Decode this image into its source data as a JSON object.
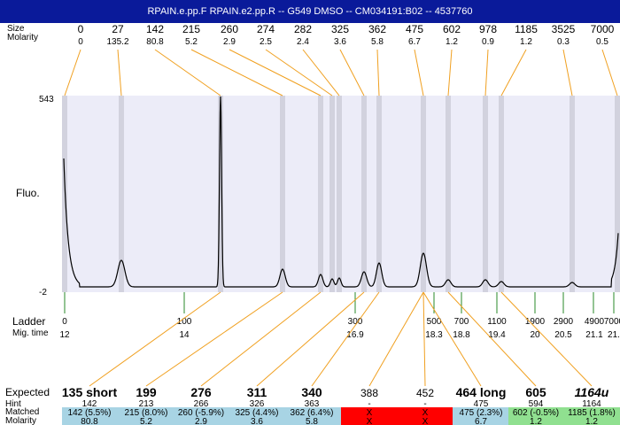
{
  "header": {
    "title": "RPAIN.e.pp.F  RPAIN.e2.pp.R -- G549 DMSO -- CM034191:B02 -- 4537760"
  },
  "labels": {
    "size_row": "Size",
    "molarity_row": "Molarity",
    "y_axis": "Fluo.",
    "ladder_row": "Ladder",
    "migtime_row": "Mig. time",
    "expected_row": "Expected",
    "hint_row": "Hint",
    "matched_row": "Matched",
    "molarity_bottom_row": "Molarity"
  },
  "colors": {
    "title_bg": "#0a1a9a",
    "plot_bg": "#ececf8",
    "band": "#d2d2de",
    "trace": "#000000",
    "connector": "#f0a020",
    "ladder_tick": "#2a8a2a",
    "matched_blue": "#a8d4e4",
    "matched_red": "#ff0000",
    "matched_green": "#90e090"
  },
  "chart_data": {
    "type": "line",
    "ylabel": "Fluo.",
    "y_ticks": [
      "543",
      "-2"
    ],
    "ylim": [
      -2,
      543
    ],
    "peaks": [
      {
        "size": "0",
        "molarity": "0"
      },
      {
        "size": "27",
        "molarity": "135.2"
      },
      {
        "size": "142",
        "molarity": "80.8"
      },
      {
        "size": "215",
        "molarity": "5.2"
      },
      {
        "size": "260",
        "molarity": "2.9"
      },
      {
        "size": "274",
        "molarity": "2.5"
      },
      {
        "size": "282",
        "molarity": "2.4"
      },
      {
        "size": "325",
        "molarity": "3.6"
      },
      {
        "size": "362",
        "molarity": "5.8"
      },
      {
        "size": "475",
        "molarity": "6.7"
      },
      {
        "size": "602",
        "molarity": "1.2"
      },
      {
        "size": "978",
        "molarity": "0.9"
      },
      {
        "size": "1185",
        "molarity": "1.2"
      },
      {
        "size": "3525",
        "molarity": "0.3"
      },
      {
        "size": "7000",
        "molarity": "0.5"
      }
    ],
    "ladder": [
      {
        "size": "0",
        "mig_time": "12"
      },
      {
        "size": "100",
        "mig_time": "14"
      },
      {
        "size": "300",
        "mig_time": "16.9"
      },
      {
        "size": "500",
        "mig_time": "18.3"
      },
      {
        "size": "700",
        "mig_time": "18.8"
      },
      {
        "size": "1100",
        "mig_time": "19.4"
      },
      {
        "size": "1900",
        "mig_time": "20"
      },
      {
        "size": "2900",
        "mig_time": "20.5"
      },
      {
        "size": "4900",
        "mig_time": "21.1"
      },
      {
        "size": "7000",
        "mig_time": "21."
      }
    ],
    "expected": [
      {
        "expected": "135 short",
        "hint": "142",
        "matched": "142 (5.5%)",
        "molarity": "80.8",
        "status": "blue"
      },
      {
        "expected": "199",
        "hint": "213",
        "matched": "215 (8.0%)",
        "molarity": "5.2",
        "status": "blue"
      },
      {
        "expected": "276",
        "hint": "266",
        "matched": "260 (-5.9%)",
        "molarity": "2.9",
        "status": "blue"
      },
      {
        "expected": "311",
        "hint": "326",
        "matched": "325 (4.4%)",
        "molarity": "3.6",
        "status": "blue"
      },
      {
        "expected": "340",
        "hint": "363",
        "matched": "362 (6.4%)",
        "molarity": "5.8",
        "status": "blue"
      },
      {
        "expected": "388",
        "hint": "-",
        "matched": "X",
        "molarity": "X",
        "status": "red"
      },
      {
        "expected": "452",
        "hint": "-",
        "matched": "X",
        "molarity": "X",
        "status": "red"
      },
      {
        "expected": "464 long",
        "hint": "475",
        "matched": "475 (2.3%)",
        "molarity": "6.7",
        "status": "blue"
      },
      {
        "expected": "605",
        "hint": "594",
        "matched": "602 (-0.5%)",
        "molarity": "1.2",
        "status": "green"
      },
      {
        "expected": "1164u",
        "hint": "1164",
        "matched": "1185 (1.8%)",
        "molarity": "1.2",
        "status": "green"
      }
    ]
  }
}
